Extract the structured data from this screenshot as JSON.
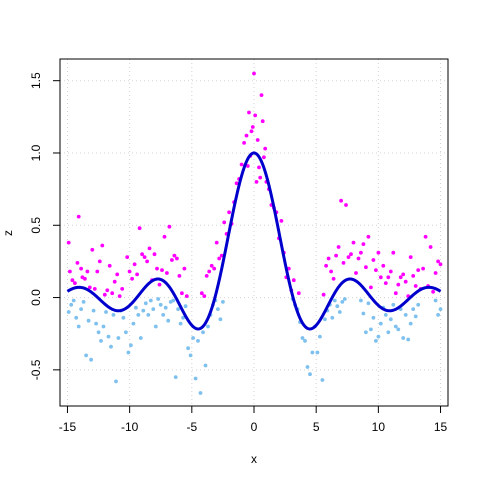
{
  "chart_data": {
    "type": "scatter",
    "title": "",
    "xlabel": "x",
    "ylabel": "z",
    "xlim": [
      -15.6,
      15.6
    ],
    "ylim": [
      -0.75,
      1.65
    ],
    "xticks": [
      -15,
      -10,
      -5,
      0,
      5,
      10,
      15
    ],
    "xtick_labels": [
      "-15",
      "-10",
      "-5",
      "0",
      "5",
      "10",
      "15"
    ],
    "yticks": [
      -0.5,
      0.0,
      0.5,
      1.0,
      1.5
    ],
    "ytick_labels": [
      "-0.5",
      "0.0",
      "0.5",
      "1.0",
      "1.5"
    ],
    "grid": true,
    "grid_style": "dotted",
    "legend": "none",
    "series": [
      {
        "kind": "points",
        "color": "#FF00FF",
        "points": [
          [
            -14.9,
            0.38
          ],
          [
            -14.8,
            0.18
          ],
          [
            -14.6,
            0.12
          ],
          [
            -14.4,
            0.1
          ],
          [
            -14.2,
            0.24
          ],
          [
            -14.1,
            0.56
          ],
          [
            -13.9,
            0.2
          ],
          [
            -13.8,
            0.14
          ],
          [
            -13.6,
            0.13
          ],
          [
            -13.4,
            0.18
          ],
          [
            -13.2,
            0.07
          ],
          [
            -13.0,
            0.33
          ],
          [
            -12.8,
            0.06
          ],
          [
            -12.6,
            0.18
          ],
          [
            -12.4,
            0.25
          ],
          [
            -12.2,
            0.36
          ],
          [
            -12.0,
            0.02
          ],
          [
            -11.8,
            0.05
          ],
          [
            -11.6,
            0.22
          ],
          [
            -11.4,
            0.03
          ],
          [
            -11.2,
            0.11
          ],
          [
            -11.0,
            0.16
          ],
          [
            -10.8,
            0.01
          ],
          [
            -10.6,
            0.06
          ],
          [
            -10.2,
            0.28
          ],
          [
            -10.0,
            0.18
          ],
          [
            -9.8,
            0.13
          ],
          [
            -9.6,
            0.23
          ],
          [
            -9.4,
            0.16
          ],
          [
            -9.2,
            0.48
          ],
          [
            -9.0,
            0.3
          ],
          [
            -8.8,
            0.28
          ],
          [
            -8.6,
            0.25
          ],
          [
            -8.4,
            0.34
          ],
          [
            -8.2,
            0.12
          ],
          [
            -8.0,
            0.3
          ],
          [
            -7.8,
            0.2
          ],
          [
            -7.6,
            0.09
          ],
          [
            -7.4,
            0.19
          ],
          [
            -7.2,
            0.42
          ],
          [
            -7.0,
            0.17
          ],
          [
            -6.8,
            0.49
          ],
          [
            -6.6,
            0.26
          ],
          [
            -6.4,
            0.29
          ],
          [
            -6.2,
            0.27
          ],
          [
            -6.0,
            0.15
          ],
          [
            -5.8,
            0.03
          ],
          [
            -5.6,
            0.2
          ],
          [
            -5.4,
            0.01
          ],
          [
            -4.2,
            0.03
          ],
          [
            -4.0,
            0.01
          ],
          [
            -3.8,
            0.15
          ],
          [
            -3.6,
            0.18
          ],
          [
            -3.4,
            0.22
          ],
          [
            -3.2,
            0.2
          ],
          [
            -3.0,
            0.38
          ],
          [
            -2.8,
            0.27
          ],
          [
            -2.6,
            0.29
          ],
          [
            -2.4,
            0.52
          ],
          [
            -2.2,
            0.44
          ],
          [
            -2.0,
            0.59
          ],
          [
            -1.8,
            0.51
          ],
          [
            -1.6,
            0.66
          ],
          [
            -1.4,
            0.79
          ],
          [
            -1.2,
            0.82
          ],
          [
            -1.0,
            0.92
          ],
          [
            -0.8,
            1.07
          ],
          [
            -0.6,
            1.12
          ],
          [
            -0.5,
            0.91
          ],
          [
            -0.4,
            1.28
          ],
          [
            -0.3,
            0.98
          ],
          [
            -0.2,
            1.15
          ],
          [
            -0.1,
            1.18
          ],
          [
            0.0,
            1.55
          ],
          [
            0.1,
            1.26
          ],
          [
            0.2,
            0.8
          ],
          [
            0.3,
            1.09
          ],
          [
            0.4,
            0.9
          ],
          [
            0.5,
            0.83
          ],
          [
            0.6,
            1.4
          ],
          [
            0.7,
            1.22
          ],
          [
            0.8,
            0.97
          ],
          [
            0.9,
            1.03
          ],
          [
            1.0,
            0.8
          ],
          [
            1.2,
            0.75
          ],
          [
            1.4,
            0.64
          ],
          [
            1.6,
            0.62
          ],
          [
            1.8,
            0.59
          ],
          [
            2.0,
            0.41
          ],
          [
            2.2,
            0.53
          ],
          [
            2.4,
            0.31
          ],
          [
            2.6,
            0.14
          ],
          [
            2.8,
            0.2
          ],
          [
            3.0,
            0.05
          ],
          [
            3.2,
            0.12
          ],
          [
            3.6,
            0.03
          ],
          [
            5.6,
            0.02
          ],
          [
            5.8,
            0.22
          ],
          [
            6.0,
            0.27
          ],
          [
            6.2,
            0.18
          ],
          [
            6.4,
            0.13
          ],
          [
            6.6,
            0.29
          ],
          [
            6.8,
            0.35
          ],
          [
            7.0,
            0.67
          ],
          [
            7.2,
            0.24
          ],
          [
            7.4,
            0.64
          ],
          [
            7.6,
            0.28
          ],
          [
            7.8,
            0.3
          ],
          [
            8.0,
            0.38
          ],
          [
            8.2,
            0.17
          ],
          [
            8.4,
            0.27
          ],
          [
            8.6,
            0.31
          ],
          [
            8.8,
            0.37
          ],
          [
            9.0,
            0.21
          ],
          [
            9.2,
            0.42
          ],
          [
            9.4,
            0.07
          ],
          [
            9.6,
            0.26
          ],
          [
            9.8,
            0.19
          ],
          [
            10.0,
            0.31
          ],
          [
            10.2,
            0.14
          ],
          [
            10.4,
            0.22
          ],
          [
            10.6,
            0.1
          ],
          [
            10.8,
            0.14
          ],
          [
            11.0,
            0.18
          ],
          [
            11.2,
            0.31
          ],
          [
            11.4,
            0.03
          ],
          [
            11.6,
            0.09
          ],
          [
            11.8,
            0.14
          ],
          [
            12.0,
            0.16
          ],
          [
            12.2,
            0.11
          ],
          [
            12.4,
            0.01
          ],
          [
            12.6,
            0.28
          ],
          [
            12.8,
            0.15
          ],
          [
            13.0,
            0.08
          ],
          [
            13.2,
            0.19
          ],
          [
            13.4,
            0.06
          ],
          [
            13.6,
            0.2
          ],
          [
            13.8,
            0.42
          ],
          [
            14.0,
            0.08
          ],
          [
            14.2,
            0.35
          ],
          [
            14.4,
            0.04
          ],
          [
            14.6,
            0.17
          ],
          [
            14.8,
            0.25
          ],
          [
            15.0,
            0.23
          ]
        ]
      },
      {
        "kind": "points",
        "color": "#7EC0EE",
        "points": [
          [
            -14.9,
            -0.1
          ],
          [
            -14.7,
            -0.05
          ],
          [
            -14.5,
            -0.02
          ],
          [
            -14.3,
            -0.14
          ],
          [
            -14.1,
            -0.2
          ],
          [
            -13.9,
            -0.08
          ],
          [
            -13.7,
            -0.03
          ],
          [
            -13.5,
            -0.4
          ],
          [
            -13.3,
            -0.16
          ],
          [
            -13.1,
            -0.43
          ],
          [
            -12.9,
            -0.09
          ],
          [
            -12.7,
            -0.18
          ],
          [
            -12.5,
            -0.24
          ],
          [
            -12.3,
            -0.3
          ],
          [
            -12.1,
            -0.2
          ],
          [
            -11.9,
            -0.1
          ],
          [
            -11.7,
            -0.27
          ],
          [
            -11.5,
            -0.34
          ],
          [
            -11.3,
            -0.12
          ],
          [
            -11.1,
            -0.58
          ],
          [
            -10.9,
            -0.28
          ],
          [
            -10.7,
            -0.09
          ],
          [
            -10.5,
            -0.14
          ],
          [
            -10.3,
            -0.24
          ],
          [
            -10.1,
            -0.38
          ],
          [
            -9.9,
            -0.33
          ],
          [
            -9.7,
            -0.18
          ],
          [
            -9.5,
            -0.07
          ],
          [
            -9.3,
            -0.12
          ],
          [
            -9.1,
            -0.28
          ],
          [
            -8.9,
            -0.09
          ],
          [
            -8.7,
            -0.04
          ],
          [
            -8.5,
            -0.12
          ],
          [
            -8.3,
            -0.02
          ],
          [
            -8.1,
            -0.08
          ],
          [
            -7.9,
            -0.2
          ],
          [
            -7.7,
            -0.01
          ],
          [
            -7.5,
            -0.05
          ],
          [
            -7.3,
            -0.12
          ],
          [
            -7.1,
            -0.07
          ],
          [
            -6.9,
            -0.16
          ],
          [
            -6.7,
            -0.03
          ],
          [
            -6.5,
            -0.02
          ],
          [
            -6.3,
            -0.55
          ],
          [
            -6.1,
            -0.08
          ],
          [
            -5.9,
            -0.18
          ],
          [
            -5.7,
            -0.14
          ],
          [
            -5.5,
            -0.06
          ],
          [
            -5.3,
            -0.35
          ],
          [
            -5.1,
            -0.4
          ],
          [
            -4.9,
            -0.28
          ],
          [
            -4.7,
            -0.56
          ],
          [
            -4.5,
            -0.3
          ],
          [
            -4.3,
            -0.66
          ],
          [
            -4.1,
            -0.24
          ],
          [
            -3.9,
            -0.47
          ],
          [
            -3.7,
            -0.2
          ],
          [
            -3.5,
            -0.12
          ],
          [
            -3.3,
            -0.05
          ],
          [
            -3.1,
            -0.02
          ],
          [
            -2.9,
            -0.08
          ],
          [
            -2.7,
            -0.15
          ],
          [
            -2.5,
            -0.03
          ],
          [
            3.1,
            -0.01
          ],
          [
            3.3,
            -0.05
          ],
          [
            3.5,
            -0.08
          ],
          [
            3.7,
            -0.17
          ],
          [
            3.9,
            -0.28
          ],
          [
            4.1,
            -0.3
          ],
          [
            4.3,
            -0.48
          ],
          [
            4.5,
            -0.53
          ],
          [
            4.7,
            -0.38
          ],
          [
            4.9,
            -0.2
          ],
          [
            5.1,
            -0.38
          ],
          [
            5.3,
            -0.27
          ],
          [
            5.5,
            -0.57
          ],
          [
            5.7,
            -0.15
          ],
          [
            5.9,
            -0.09
          ],
          [
            6.1,
            -0.05
          ],
          [
            6.3,
            -0.14
          ],
          [
            6.5,
            -0.02
          ],
          [
            6.7,
            -0.06
          ],
          [
            6.9,
            -0.1
          ],
          [
            7.1,
            -0.03
          ],
          [
            7.3,
            -0.01
          ],
          [
            8.6,
            -0.02
          ],
          [
            8.8,
            -0.11
          ],
          [
            9.0,
            -0.24
          ],
          [
            9.2,
            -0.04
          ],
          [
            9.4,
            -0.22
          ],
          [
            9.6,
            -0.14
          ],
          [
            9.8,
            -0.3
          ],
          [
            10.0,
            -0.27
          ],
          [
            10.2,
            -0.18
          ],
          [
            10.4,
            -0.07
          ],
          [
            10.6,
            -0.12
          ],
          [
            10.8,
            -0.24
          ],
          [
            11.0,
            -0.15
          ],
          [
            11.2,
            -0.05
          ],
          [
            11.4,
            -0.2
          ],
          [
            11.6,
            -0.22
          ],
          [
            11.8,
            -0.08
          ],
          [
            12.0,
            -0.28
          ],
          [
            12.2,
            -0.12
          ],
          [
            12.4,
            -0.29
          ],
          [
            12.6,
            -0.18
          ],
          [
            12.8,
            -0.08
          ],
          [
            13.0,
            -0.13
          ],
          [
            13.2,
            -0.05
          ],
          [
            14.6,
            -0.02
          ],
          [
            14.8,
            -0.12
          ],
          [
            15.0,
            -0.08
          ]
        ]
      },
      {
        "kind": "line",
        "color": "#0000CD",
        "function": "sin(x)/x",
        "x_range": [
          -15,
          15
        ]
      }
    ]
  }
}
